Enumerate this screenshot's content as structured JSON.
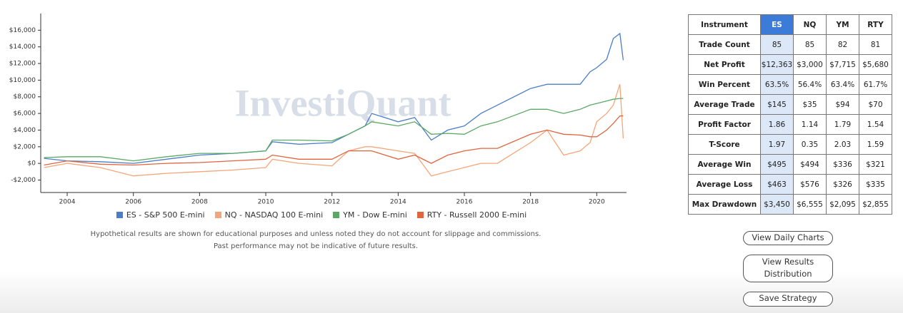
{
  "chart_data": {
    "type": "line",
    "watermark": "InvestiQuant",
    "x": [
      2003.3,
      2004,
      2005,
      2006,
      2007,
      2008,
      2009,
      2010,
      2010.2,
      2011,
      2012,
      2012.5,
      2013,
      2013.2,
      2014,
      2014.5,
      2015,
      2015.5,
      2016,
      2016.5,
      2017,
      2018,
      2018.5,
      2019,
      2019.5,
      2019.8,
      2020,
      2020.3,
      2020.5,
      2020.7,
      2020.8
    ],
    "series": [
      {
        "name": "ES - S&P 500 E-mini",
        "color": "#4a7fc8",
        "values": [
          600,
          300,
          200,
          0,
          500,
          1000,
          1200,
          1500,
          2600,
          2300,
          2500,
          3500,
          4500,
          6000,
          5000,
          5500,
          2800,
          4000,
          4500,
          6000,
          7000,
          9000,
          9500,
          9500,
          9500,
          11000,
          11500,
          12500,
          15000,
          15600,
          12400
        ]
      },
      {
        "name": "NQ - NASDAQ 100 E-mini",
        "color": "#f5a57a",
        "values": [
          -500,
          0,
          -500,
          -1500,
          -1200,
          -1000,
          -800,
          -500,
          500,
          0,
          -300,
          1500,
          2000,
          2000,
          1500,
          1200,
          -1500,
          -1000,
          -500,
          0,
          0,
          2500,
          4000,
          1000,
          1500,
          2500,
          5000,
          6000,
          7000,
          9500,
          3000
        ]
      },
      {
        "name": "YM - Dow E-mini",
        "color": "#5aa864",
        "values": [
          700,
          800,
          800,
          300,
          800,
          1200,
          1200,
          1500,
          2800,
          2800,
          2700,
          3500,
          4500,
          5000,
          4500,
          5000,
          3500,
          3600,
          3500,
          4500,
          5000,
          6500,
          6500,
          6000,
          6500,
          7000,
          7200,
          7500,
          7700,
          7800,
          7800
        ]
      },
      {
        "name": "RTY - Russell 2000 E-mini",
        "color": "#e0653f",
        "values": [
          -200,
          300,
          -100,
          -200,
          0,
          100,
          300,
          500,
          1000,
          500,
          500,
          1500,
          1500,
          1500,
          500,
          1000,
          0,
          1000,
          1500,
          1800,
          1800,
          3500,
          4000,
          3500,
          3400,
          3200,
          3200,
          4000,
          4800,
          5700,
          5700
        ]
      }
    ],
    "xlim": [
      2003.2,
      2020.9
    ],
    "xticks": [
      2004,
      2006,
      2008,
      2010,
      2012,
      2014,
      2016,
      2018,
      2020
    ],
    "ylim": [
      -3500,
      18000
    ],
    "yticks": [
      {
        "value": -2000,
        "label": "-$2,000"
      },
      {
        "value": 0,
        "label": "$0"
      },
      {
        "value": 2000,
        "label": "$2,000"
      },
      {
        "value": 4000,
        "label": "$4,000"
      },
      {
        "value": 6000,
        "label": "$6,000"
      },
      {
        "value": 8000,
        "label": "$8,000"
      },
      {
        "value": 10000,
        "label": "$10,000"
      },
      {
        "value": 12000,
        "label": "$12,000"
      },
      {
        "value": 14000,
        "label": "$14,000"
      },
      {
        "value": 16000,
        "label": "$16,000"
      }
    ],
    "notes": [
      "Hypothetical results are shown for educational purposes and unless noted they do not account for slippage and commissions.",
      "Past performance may not be indicative of future results."
    ]
  },
  "table": {
    "header": [
      "Instrument",
      "ES",
      "NQ",
      "YM",
      "RTY"
    ],
    "rows": [
      [
        "Trade Count",
        "85",
        "85",
        "82",
        "81"
      ],
      [
        "Net Profit",
        "$12,363",
        "$3,000",
        "$7,715",
        "$5,680"
      ],
      [
        "Win Percent",
        "63.5%",
        "56.4%",
        "63.4%",
        "61.7%"
      ],
      [
        "Average Trade",
        "$145",
        "$35",
        "$94",
        "$70"
      ],
      [
        "Profit Factor",
        "1.86",
        "1.14",
        "1.79",
        "1.54"
      ],
      [
        "T-Score",
        "1.97",
        "0.35",
        "2.03",
        "1.59"
      ],
      [
        "Average Win",
        "$495",
        "$494",
        "$336",
        "$321"
      ],
      [
        "Average Loss",
        "$463",
        "$576",
        "$326",
        "$335"
      ],
      [
        "Max Drawdown",
        "$3,450",
        "$6,555",
        "$2,095",
        "$2,855"
      ]
    ]
  },
  "buttons": [
    "View Daily Charts",
    "View Results Distribution",
    "Save Strategy"
  ]
}
